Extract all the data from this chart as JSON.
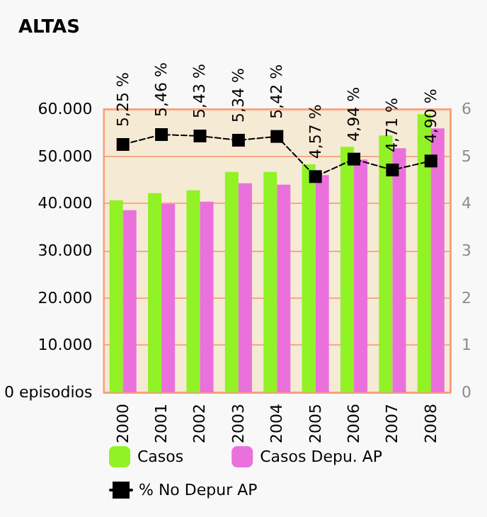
{
  "chart_data": {
    "type": "bar",
    "title": "ALTAS",
    "categories": [
      "2000",
      "2001",
      "2002",
      "2003",
      "2004",
      "2005",
      "2006",
      "2007",
      "2008"
    ],
    "series": [
      {
        "name": "Casos",
        "color": "#91f225",
        "values": [
          40700,
          42200,
          42800,
          46700,
          46700,
          48300,
          52000,
          54400,
          58900
        ]
      },
      {
        "name": "Casos Depu. AP",
        "color": "#ea71dc",
        "values": [
          38600,
          39900,
          40400,
          44300,
          44000,
          46000,
          49300,
          51700,
          55900
        ]
      },
      {
        "name": "% No Depur AP",
        "type": "line",
        "axis": "y2",
        "color": "#000000",
        "marker": "square",
        "line_style": "dashed",
        "values": [
          5.25,
          5.46,
          5.43,
          5.34,
          5.42,
          4.57,
          4.94,
          4.71,
          4.9
        ],
        "value_labels": [
          "5,25 %",
          "5,46 %",
          "5,43 %",
          "5,34 %",
          "5,42 %",
          "4,57 %",
          "4,94 %",
          "4,71 %",
          "4,90 %"
        ]
      }
    ],
    "ylim": [
      0,
      60000
    ],
    "yticks": [
      {
        "value": 0,
        "label": "0 episodios"
      },
      {
        "value": 10000,
        "label": "10.000"
      },
      {
        "value": 20000,
        "label": "20.000"
      },
      {
        "value": 30000,
        "label": "30.000"
      },
      {
        "value": 40000,
        "label": "40.000"
      },
      {
        "value": 50000,
        "label": "50.000"
      },
      {
        "value": 60000,
        "label": "60.000"
      }
    ],
    "y2lim": [
      0,
      6
    ],
    "y2ticks": [
      0,
      1,
      2,
      3,
      4,
      5,
      6
    ],
    "grid": "y",
    "legend": "bottom"
  }
}
